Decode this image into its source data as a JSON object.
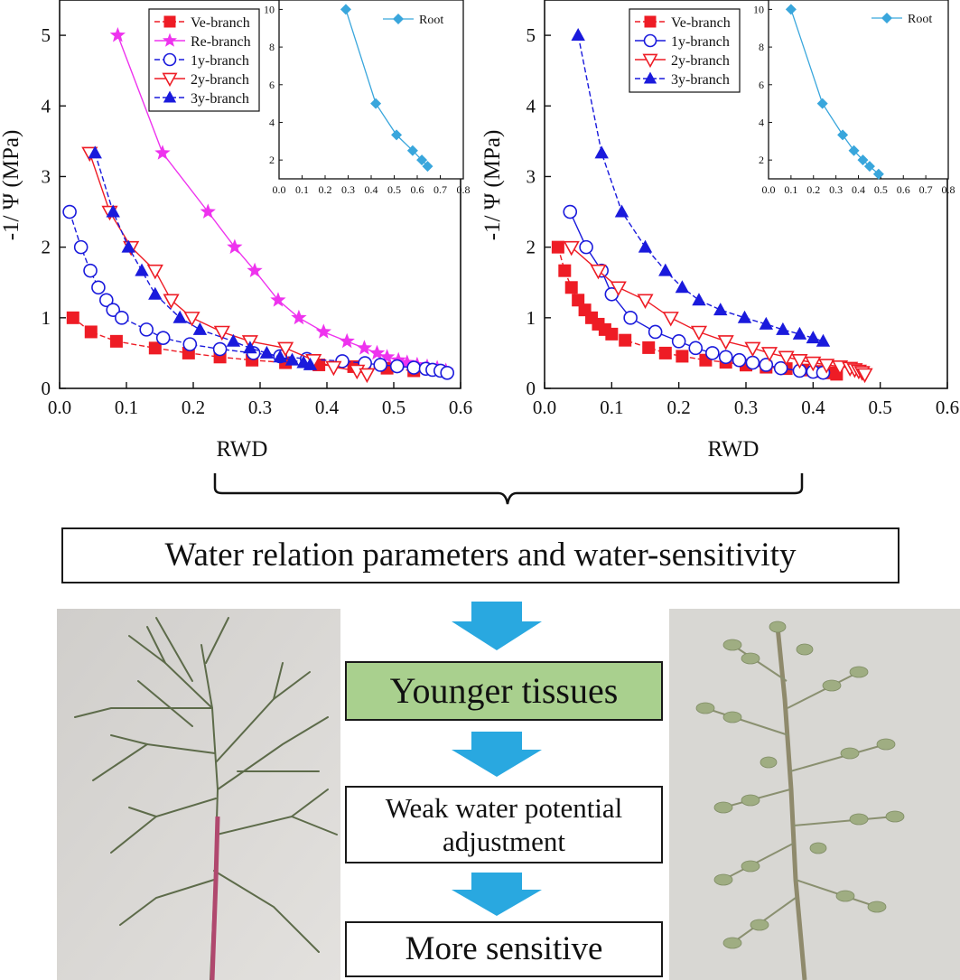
{
  "chart_data": [
    {
      "type": "line",
      "xlabel": "RWD",
      "ylabel": "-1/ Ψ (MPa)",
      "xlim": [
        0,
        0.6
      ],
      "ylim": [
        0,
        5.5
      ],
      "xticks": [
        "0.0",
        "0.1",
        "0.2",
        "0.3",
        "0.4",
        "0.5",
        "0.6"
      ],
      "yticks": [
        "0",
        "1",
        "2",
        "3",
        "4",
        "5"
      ],
      "legend_position": "top-left",
      "series": [
        {
          "name": "Ve-branch",
          "color": "#ee1c25",
          "marker": "square",
          "dash": "6,3",
          "points": [
            [
              0.02,
              1.0
            ],
            [
              0.047,
              0.8
            ],
            [
              0.085,
              0.667
            ],
            [
              0.143,
              0.571
            ],
            [
              0.193,
              0.5
            ],
            [
              0.24,
              0.444
            ],
            [
              0.288,
              0.4
            ],
            [
              0.338,
              0.364
            ],
            [
              0.388,
              0.333
            ],
            [
              0.44,
              0.308
            ],
            [
              0.49,
              0.286
            ],
            [
              0.53,
              0.25
            ]
          ]
        },
        {
          "name": "Re-branch",
          "color": "#ee33ee",
          "marker": "star",
          "dash": "",
          "points": [
            [
              0.087,
              5.0
            ],
            [
              0.154,
              3.333
            ],
            [
              0.222,
              2.5
            ],
            [
              0.262,
              2.0
            ],
            [
              0.292,
              1.667
            ],
            [
              0.327,
              1.25
            ],
            [
              0.358,
              1.0
            ],
            [
              0.395,
              0.8
            ],
            [
              0.43,
              0.667
            ],
            [
              0.456,
              0.571
            ],
            [
              0.475,
              0.5
            ],
            [
              0.49,
              0.444
            ],
            [
              0.507,
              0.4
            ],
            [
              0.52,
              0.364
            ],
            [
              0.535,
              0.333
            ],
            [
              0.55,
              0.308
            ],
            [
              0.565,
              0.286
            ],
            [
              0.578,
              0.25
            ]
          ]
        },
        {
          "name": "1y-branch",
          "color": "#1a1adc",
          "marker": "circle",
          "dash": "6,3",
          "points": [
            [
              0.015,
              2.5
            ],
            [
              0.032,
              2.0
            ],
            [
              0.046,
              1.667
            ],
            [
              0.058,
              1.429
            ],
            [
              0.07,
              1.25
            ],
            [
              0.08,
              1.111
            ],
            [
              0.093,
              1.0
            ],
            [
              0.13,
              0.833
            ],
            [
              0.155,
              0.714
            ],
            [
              0.195,
              0.625
            ],
            [
              0.24,
              0.556
            ],
            [
              0.29,
              0.5
            ],
            [
              0.33,
              0.455
            ],
            [
              0.37,
              0.417
            ],
            [
              0.423,
              0.385
            ],
            [
              0.457,
              0.357
            ],
            [
              0.48,
              0.333
            ],
            [
              0.505,
              0.313
            ],
            [
              0.53,
              0.294
            ],
            [
              0.548,
              0.278
            ],
            [
              0.558,
              0.263
            ],
            [
              0.57,
              0.25
            ],
            [
              0.58,
              0.22
            ]
          ]
        },
        {
          "name": "2y-branch",
          "color": "#ee1c25",
          "marker": "tri-down",
          "dash": "",
          "points": [
            [
              0.045,
              3.333
            ],
            [
              0.075,
              2.5
            ],
            [
              0.107,
              2.0
            ],
            [
              0.143,
              1.667
            ],
            [
              0.167,
              1.25
            ],
            [
              0.198,
              1.0
            ],
            [
              0.243,
              0.8
            ],
            [
              0.285,
              0.667
            ],
            [
              0.338,
              0.571
            ],
            [
              0.38,
              0.4
            ],
            [
              0.41,
              0.3
            ],
            [
              0.445,
              0.25
            ],
            [
              0.46,
              0.2
            ]
          ]
        },
        {
          "name": "3y-branch",
          "color": "#1a1adc",
          "marker": "tri-up",
          "dash": "6,3",
          "points": [
            [
              0.053,
              3.333
            ],
            [
              0.08,
              2.5
            ],
            [
              0.103,
              2.0
            ],
            [
              0.123,
              1.667
            ],
            [
              0.143,
              1.333
            ],
            [
              0.18,
              1.0
            ],
            [
              0.21,
              0.833
            ],
            [
              0.26,
              0.667
            ],
            [
              0.285,
              0.571
            ],
            [
              0.31,
              0.5
            ],
            [
              0.33,
              0.444
            ],
            [
              0.348,
              0.4
            ],
            [
              0.365,
              0.364
            ],
            [
              0.375,
              0.333
            ]
          ]
        }
      ],
      "inset": {
        "xlim": [
          0,
          0.8
        ],
        "ylim": [
          1,
          10.5
        ],
        "xticks": [
          "0.0",
          "0.1",
          "0.2",
          "0.3",
          "0.4",
          "0.5",
          "0.6",
          "0.7",
          "0.8"
        ],
        "yticks": [
          "2",
          "4",
          "6",
          "8",
          "10"
        ],
        "series": [
          {
            "name": "Root",
            "color": "#39a6dc",
            "marker": "diamond",
            "points": [
              [
                0.29,
                10.0
              ],
              [
                0.42,
                5.0
              ],
              [
                0.51,
                3.333
              ],
              [
                0.58,
                2.5
              ],
              [
                0.62,
                2.0
              ],
              [
                0.645,
                1.667
              ]
            ]
          }
        ]
      }
    },
    {
      "type": "line",
      "xlabel": "RWD",
      "ylabel": "-1/ Ψ (MPa)",
      "xlim": [
        0,
        0.6
      ],
      "ylim": [
        0,
        5.5
      ],
      "xticks": [
        "0.0",
        "0.1",
        "0.2",
        "0.3",
        "0.4",
        "0.5",
        "0.6"
      ],
      "yticks": [
        "0",
        "1",
        "2",
        "3",
        "4",
        "5"
      ],
      "legend_position": "top-left",
      "series": [
        {
          "name": "Ve-branch",
          "color": "#ee1c25",
          "marker": "square",
          "dash": "6,3",
          "points": [
            [
              0.02,
              2.0
            ],
            [
              0.03,
              1.667
            ],
            [
              0.04,
              1.429
            ],
            [
              0.05,
              1.25
            ],
            [
              0.06,
              1.111
            ],
            [
              0.07,
              1.0
            ],
            [
              0.08,
              0.909
            ],
            [
              0.09,
              0.833
            ],
            [
              0.1,
              0.769
            ],
            [
              0.12,
              0.682
            ],
            [
              0.155,
              0.577
            ],
            [
              0.18,
              0.5
            ],
            [
              0.205,
              0.455
            ],
            [
              0.24,
              0.4
            ],
            [
              0.27,
              0.37
            ],
            [
              0.3,
              0.33
            ],
            [
              0.33,
              0.3
            ],
            [
              0.36,
              0.28
            ],
            [
              0.385,
              0.26
            ],
            [
              0.41,
              0.24
            ],
            [
              0.425,
              0.22
            ],
            [
              0.435,
              0.2
            ]
          ]
        },
        {
          "name": "1y-branch",
          "color": "#1a1adc",
          "marker": "circle",
          "dash": "",
          "points": [
            [
              0.038,
              2.5
            ],
            [
              0.062,
              2.0
            ],
            [
              0.085,
              1.667
            ],
            [
              0.1,
              1.333
            ],
            [
              0.128,
              1.0
            ],
            [
              0.165,
              0.8
            ],
            [
              0.2,
              0.667
            ],
            [
              0.225,
              0.571
            ],
            [
              0.25,
              0.5
            ],
            [
              0.27,
              0.444
            ],
            [
              0.29,
              0.4
            ],
            [
              0.31,
              0.364
            ],
            [
              0.33,
              0.333
            ],
            [
              0.352,
              0.286
            ],
            [
              0.38,
              0.25
            ],
            [
              0.4,
              0.235
            ],
            [
              0.415,
              0.222
            ]
          ]
        },
        {
          "name": "2y-branch",
          "color": "#ee1c25",
          "marker": "tri-down",
          "dash": "",
          "points": [
            [
              0.04,
              2.0
            ],
            [
              0.08,
              1.667
            ],
            [
              0.11,
              1.429
            ],
            [
              0.15,
              1.25
            ],
            [
              0.188,
              1.0
            ],
            [
              0.23,
              0.8
            ],
            [
              0.27,
              0.667
            ],
            [
              0.31,
              0.571
            ],
            [
              0.335,
              0.5
            ],
            [
              0.36,
              0.444
            ],
            [
              0.38,
              0.4
            ],
            [
              0.4,
              0.364
            ],
            [
              0.42,
              0.333
            ],
            [
              0.44,
              0.31
            ],
            [
              0.455,
              0.29
            ],
            [
              0.462,
              0.27
            ],
            [
              0.468,
              0.25
            ],
            [
              0.473,
              0.23
            ],
            [
              0.477,
              0.2
            ]
          ]
        },
        {
          "name": "3y-branch",
          "color": "#1a1adc",
          "marker": "tri-up",
          "dash": "6,3",
          "points": [
            [
              0.05,
              5.0
            ],
            [
              0.085,
              3.333
            ],
            [
              0.115,
              2.5
            ],
            [
              0.15,
              2.0
            ],
            [
              0.18,
              1.667
            ],
            [
              0.205,
              1.429
            ],
            [
              0.23,
              1.25
            ],
            [
              0.262,
              1.111
            ],
            [
              0.298,
              1.0
            ],
            [
              0.33,
              0.909
            ],
            [
              0.355,
              0.833
            ],
            [
              0.38,
              0.769
            ],
            [
              0.4,
              0.714
            ],
            [
              0.415,
              0.667
            ]
          ]
        }
      ],
      "inset": {
        "xlim": [
          0,
          0.8
        ],
        "ylim": [
          1,
          10.5
        ],
        "xticks": [
          "0.0",
          "0.1",
          "0.2",
          "0.3",
          "0.4",
          "0.5",
          "0.6",
          "0.7",
          "0.8"
        ],
        "yticks": [
          "2",
          "4",
          "6",
          "8",
          "10"
        ],
        "series": [
          {
            "name": "Root",
            "color": "#39a6dc",
            "marker": "diamond",
            "points": [
              [
                0.1,
                10.0
              ],
              [
                0.24,
                5.0
              ],
              [
                0.33,
                3.333
              ],
              [
                0.38,
                2.5
              ],
              [
                0.42,
                2.0
              ],
              [
                0.45,
                1.667
              ],
              [
                0.49,
                1.25
              ]
            ]
          }
        ]
      }
    }
  ],
  "flow": {
    "title": "Water relation parameters and water-sensitivity",
    "step1": "Younger tissues",
    "step2_line1": "Weak water potential",
    "step2_line2": "adjustment",
    "step3": "More sensitive",
    "arrow_color": "#29a8e0",
    "highlight_color": "#a9d08e"
  },
  "photos": {
    "left_subject": "branch with needle-like leaves",
    "right_subject": "branch with small oval leaflets"
  }
}
